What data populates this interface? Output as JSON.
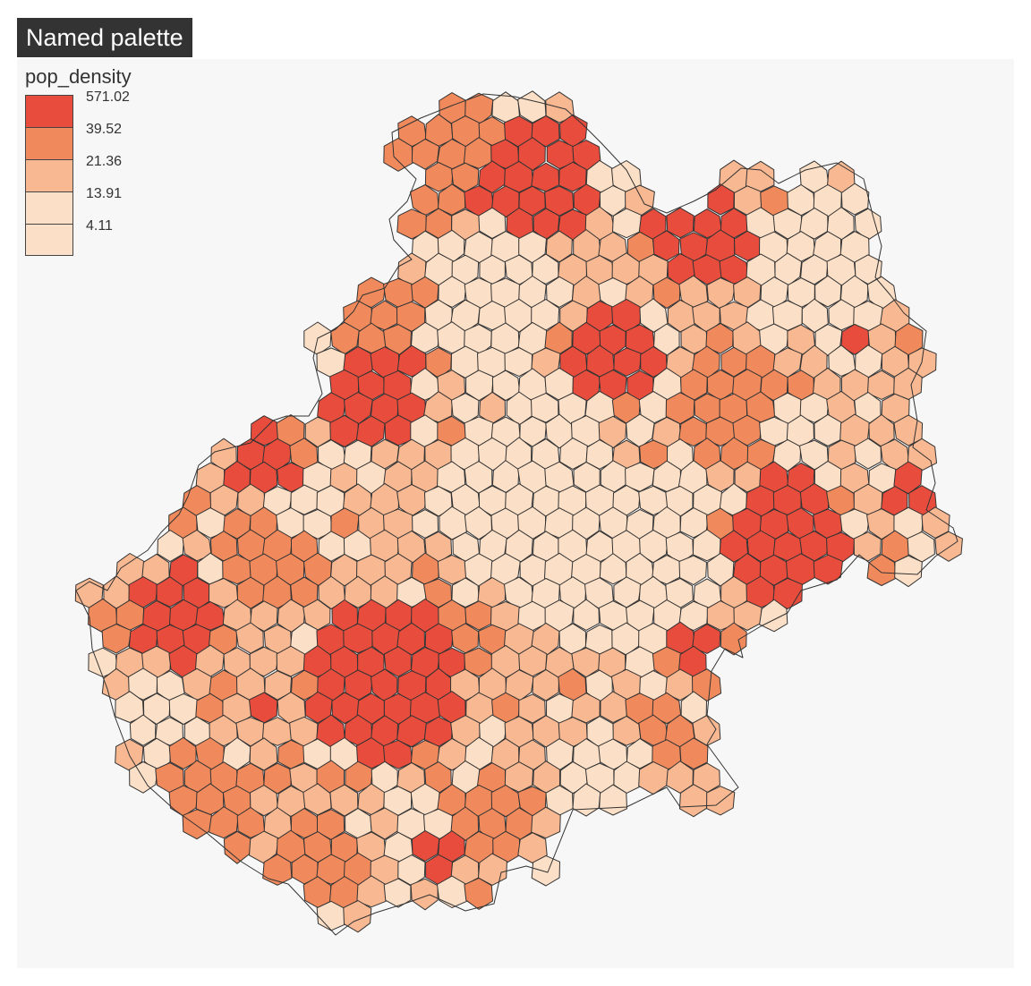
{
  "title": "Named palette",
  "legend": {
    "title": "pop_density",
    "items": [
      {
        "label": "571.02",
        "color": "#e74c3c"
      },
      {
        "label": "39.52",
        "color": "#f08a5d"
      },
      {
        "label": "21.36",
        "color": "#f7b892"
      },
      {
        "label": "13.91",
        "color": "#fbdfc6"
      },
      {
        "label": "4.11",
        "color": "#fbdfc6"
      }
    ]
  },
  "colors": {
    "very_high": "#e74c3c",
    "high": "#f08a5d",
    "medium": "#f7b892",
    "low": "#fbdfc6",
    "border": "#333333",
    "panel_bg": "#f7f7f7",
    "title_bg": "#333333"
  }
}
